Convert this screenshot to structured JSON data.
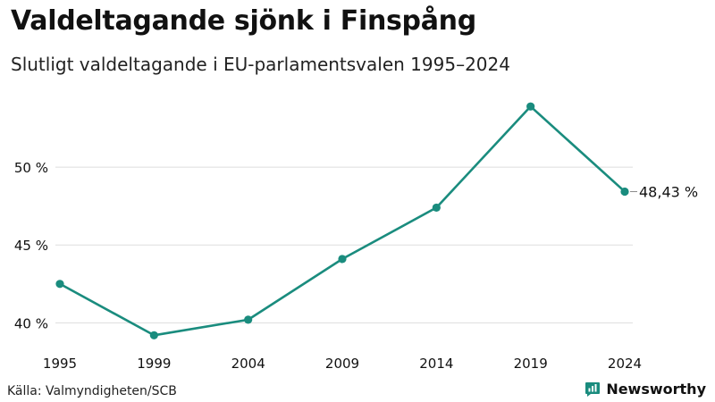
{
  "title": "Valdeltagande sjönk i Finspång",
  "subtitle": "Slutligt valdeltagande i EU-parlamentsvalen 1995–2024",
  "source": "Källa: Valmyndigheten/SCB",
  "brand": {
    "name": "Newsworthy",
    "icon": "newsworthy-logo-icon"
  },
  "colors": {
    "line": "#1a8c7e",
    "grid": "#dddddd",
    "text": "#111111"
  },
  "chart_data": {
    "type": "line",
    "title": "Valdeltagande sjönk i Finspång",
    "subtitle": "Slutligt valdeltagande i EU-parlamentsvalen 1995–2024",
    "x": [
      "1995",
      "1999",
      "2004",
      "2009",
      "2014",
      "2019",
      "2024"
    ],
    "series": [
      {
        "name": "Valdeltagande",
        "values": [
          42.5,
          39.2,
          40.2,
          44.1,
          47.4,
          53.9,
          48.43
        ]
      }
    ],
    "ylim": [
      38.7,
      55
    ],
    "yticks": [
      40,
      45,
      50
    ],
    "ytick_labels": [
      "40 %",
      "45 %",
      "50 %"
    ],
    "end_label": "48,43 %",
    "xlabel": "",
    "ylabel": "",
    "grid": true
  }
}
